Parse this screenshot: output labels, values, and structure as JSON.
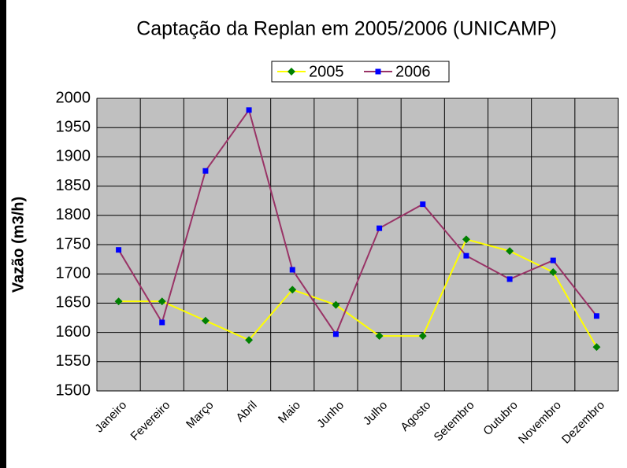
{
  "chart_data": {
    "type": "line",
    "title": "Captação da Replan em 2005/2006 (UNICAMP)",
    "y_label": "Vazão (m3/h)",
    "categories": [
      "Janeiro",
      "Fevereiro",
      "Março",
      "Abril",
      "Maio",
      "Junho",
      "Julho",
      "Agosto",
      "Setembro",
      "Outubro",
      "Novembro",
      "Dezembro"
    ],
    "series": [
      {
        "name": "2005",
        "color": "#ffff00",
        "marker_color": "#008000",
        "values": [
          1653,
          1653,
          1620,
          1587,
          1673,
          1647,
          1594,
          1594,
          1759,
          1739,
          1703,
          1575
        ]
      },
      {
        "name": "2006",
        "color": "#993366",
        "marker_color": "#0000ff",
        "values": [
          1741,
          1617,
          1876,
          1980,
          1707,
          1597,
          1778,
          1819,
          1731,
          1691,
          1723,
          1628
        ]
      }
    ],
    "ylim": [
      1500,
      2000
    ],
    "yticks": [
      1500,
      1550,
      1600,
      1650,
      1700,
      1750,
      1800,
      1850,
      1900,
      1950,
      2000
    ],
    "grid": true
  }
}
